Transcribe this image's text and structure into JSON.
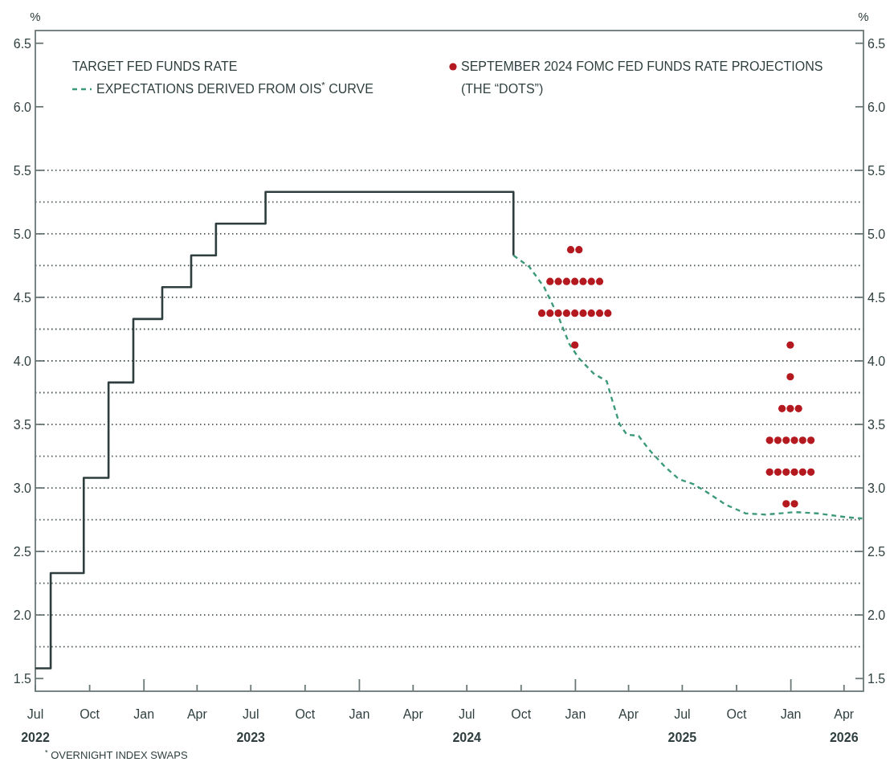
{
  "chart_data": {
    "type": "step",
    "ylabel": "%",
    "y2label": "%",
    "xlim": [
      "2022-07-01",
      "2026-05-04"
    ],
    "xticks": [
      {
        "value": "2022-07-01",
        "label": "Jul\n2022"
      },
      {
        "value": "2022-10-01",
        "label": "Oct"
      },
      {
        "value": "2023-01-01",
        "label": "Jan"
      },
      {
        "value": "2023-04-01",
        "label": "Apr"
      },
      {
        "value": "2023-07-01",
        "label": "Jul\n2023"
      },
      {
        "value": "2023-10-01",
        "label": "Oct"
      },
      {
        "value": "2024-01-01",
        "label": "Jan"
      },
      {
        "value": "2024-04-01",
        "label": "Apr"
      },
      {
        "value": "2024-07-01",
        "label": "Jul\n2024"
      },
      {
        "value": "2024-10-01",
        "label": "Oct"
      },
      {
        "value": "2025-01-01",
        "label": "Jan"
      },
      {
        "value": "2025-04-01",
        "label": "Apr"
      },
      {
        "value": "2025-07-01",
        "label": "Jul\n2025"
      },
      {
        "value": "2025-10-01",
        "label": "Oct"
      },
      {
        "value": "2026-01-01",
        "label": "Jan"
      },
      {
        "value": "2026-04-01",
        "label": "Apr\n2026"
      }
    ],
    "ylim": [
      1.4,
      6.6
    ],
    "yticks": [
      1.5,
      {
        "value": 2,
        "label": "2.0"
      },
      2.5,
      {
        "value": 3,
        "label": "3.0"
      },
      3.5,
      {
        "value": 4,
        "label": "4.0"
      },
      4.5,
      {
        "value": 5,
        "label": "5.0"
      },
      5.5,
      {
        "value": 6,
        "label": "6.0"
      },
      6.5
    ],
    "y2lim": [
      1.4,
      6.6
    ],
    "y2ticks": [
      1.5,
      {
        "value": 2,
        "label": "2.0"
      },
      2.5,
      {
        "value": 3,
        "label": "3.0"
      },
      3.5,
      {
        "value": 4,
        "label": "4.0"
      },
      4.5,
      {
        "value": 5,
        "label": "5.0"
      },
      5.5,
      {
        "value": 6,
        "label": "6.0"
      },
      6.5
    ],
    "legend": "top",
    "grid": false,
    "ref_lines": [
      {
        "axis": "y",
        "value": 1.75,
        "line_style": "dotted"
      },
      {
        "axis": "y",
        "value": 2.0,
        "line_style": "dotted"
      },
      {
        "axis": "y",
        "value": 2.25,
        "line_style": "dotted"
      },
      {
        "axis": "y",
        "value": 2.5,
        "line_style": "dotted"
      },
      {
        "axis": "y",
        "value": 2.75,
        "line_style": "dotted"
      },
      {
        "axis": "y",
        "value": 3.0,
        "line_style": "dotted"
      },
      {
        "axis": "y",
        "value": 3.25,
        "line_style": "dotted"
      },
      {
        "axis": "y",
        "value": 3.5,
        "line_style": "dotted"
      },
      {
        "axis": "y",
        "value": 3.75,
        "line_style": "dotted"
      },
      {
        "axis": "y",
        "value": 4.0,
        "line_style": "dotted"
      },
      {
        "axis": "y",
        "value": 4.25,
        "line_style": "dotted"
      },
      {
        "axis": "y",
        "value": 4.5,
        "line_style": "dotted"
      },
      {
        "axis": "y",
        "value": 4.75,
        "line_style": "dotted"
      },
      {
        "axis": "y",
        "value": 5.0,
        "line_style": "dotted"
      },
      {
        "axis": "y",
        "value": 5.25,
        "line_style": "dotted"
      },
      {
        "axis": "y",
        "value": 5.5,
        "line_style": "dotted"
      }
    ],
    "annotations": [
      "$^{*}$ OVERNIGHT INDEX SWAPS"
    ],
    "series": [
      {
        "name": "TARGET FED FUNDS RATE",
        "color": "#2e3d3d",
        "line_style": "solid",
        "x": [
          "2022-07-01",
          "2022-07-27",
          "2022-09-21",
          "2022-11-02",
          "2022-12-14",
          "2023-02-01",
          "2023-03-22",
          "2023-05-03",
          "2023-07-26",
          "2024-09-18"
        ],
        "values": [
          1.58,
          2.33,
          3.08,
          3.83,
          4.33,
          4.58,
          4.83,
          5.08,
          5.33,
          4.83
        ]
      },
      {
        "name": "EXPECTATIONS DERIVED FROM OIS$^{*}$ CURVE",
        "type": "line",
        "color": "#3d9a78",
        "line_style": "dashed",
        "x": [
          "2024-09-18",
          "2024-10-15",
          "2024-11-09",
          "2024-12-03",
          "2024-12-22",
          "2025-01-07",
          "2025-02-01",
          "2025-02-23",
          "2025-03-05",
          "2025-03-17",
          "2025-03-29",
          "2025-04-18",
          "2025-05-06",
          "2025-06-01",
          "2025-06-25",
          "2025-07-20",
          "2025-08-14",
          "2025-09-12",
          "2025-10-16",
          "2025-11-19",
          "2026-01-08",
          "2026-02-15",
          "2026-04-04",
          "2026-05-02"
        ],
        "values": [
          4.83,
          4.74,
          4.58,
          4.35,
          4.13,
          4.02,
          3.9,
          3.84,
          3.68,
          3.5,
          3.42,
          3.41,
          3.3,
          3.17,
          3.07,
          3.03,
          2.96,
          2.87,
          2.8,
          2.79,
          2.81,
          2.8,
          2.77,
          2.76
        ]
      },
      {
        "name": "SEPTEMBER 2024 FOMC FED FUNDS RATE PROJECTIONS (THE “DOTS”)",
        "type": "scatter",
        "color": "#b3191e",
        "marker": "circle",
        "x": [
          "2024-12-24",
          "2025-01-07",
          "2024-11-19",
          "2024-12-03",
          "2024-12-17",
          "2024-12-31",
          "2025-01-14",
          "2025-01-28",
          "2025-02-11",
          "2024-11-05",
          "2024-11-19",
          "2024-12-03",
          "2024-12-17",
          "2024-12-31",
          "2025-01-14",
          "2025-01-28",
          "2025-02-11",
          "2025-02-25",
          "2024-12-31",
          "2025-12-31",
          "2025-12-31",
          "2025-12-17",
          "2025-12-31",
          "2026-01-14",
          "2025-11-26",
          "2025-12-10",
          "2025-12-24",
          "2026-01-07",
          "2026-01-21",
          "2026-02-04",
          "2025-11-26",
          "2025-12-10",
          "2025-12-24",
          "2026-01-07",
          "2026-01-21",
          "2026-02-04",
          "2025-12-24",
          "2026-01-07"
        ],
        "values": [
          4.875,
          4.875,
          4.625,
          4.625,
          4.625,
          4.625,
          4.625,
          4.625,
          4.625,
          4.375,
          4.375,
          4.375,
          4.375,
          4.375,
          4.375,
          4.375,
          4.375,
          4.375,
          4.125,
          4.125,
          3.875,
          3.625,
          3.625,
          3.625,
          3.375,
          3.375,
          3.375,
          3.375,
          3.375,
          3.375,
          3.125,
          3.125,
          3.125,
          3.125,
          3.125,
          3.125,
          2.875,
          2.875
        ]
      }
    ]
  }
}
